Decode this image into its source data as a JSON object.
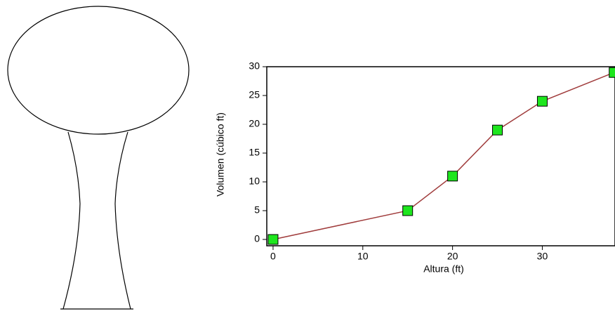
{
  "chart_data": {
    "type": "line",
    "x_label": "Altura (ft)",
    "y_label": "Volumen (cúbico ft)",
    "x": [
      0,
      15,
      20,
      25,
      30,
      38
    ],
    "series": [
      {
        "color": "#a03c3c",
        "marker_color": "#1ee61e",
        "values": [
          0,
          5,
          11,
          19,
          24,
          29
        ]
      }
    ],
    "xlim": [
      -0.7,
      38.1
    ],
    "ylim": [
      -1.1,
      30
    ],
    "xticks": [
      0,
      10,
      20,
      30
    ],
    "yticks": [
      0,
      5,
      10,
      15,
      20,
      25,
      30
    ]
  }
}
